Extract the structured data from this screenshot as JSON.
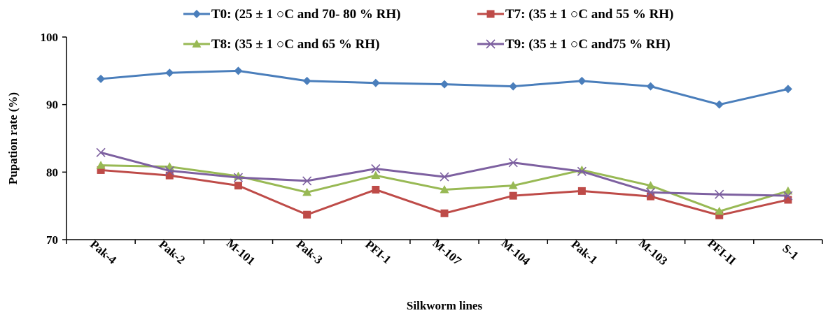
{
  "chart_data": {
    "type": "line",
    "xlabel": "Silkworm lines",
    "ylabel": "Pupation rate (%)",
    "ylim": [
      70,
      100
    ],
    "yticks": [
      70,
      80,
      90,
      100
    ],
    "categories": [
      "Pak-4",
      "Pak-2",
      "M-101",
      "Pak-3",
      "PFI-1",
      "M-107",
      "M-104",
      "Pak-1",
      "M-103",
      "PFI-II",
      "S-1"
    ],
    "grid": false,
    "legend_position": "top",
    "series": [
      {
        "name": "T0: (25 ± 1 ○C and 70- 80 % RH)",
        "color": "#4a7ebb",
        "marker": "diamond",
        "values": [
          93.8,
          94.7,
          95.0,
          93.5,
          93.2,
          93.0,
          92.7,
          93.5,
          92.7,
          90.0,
          92.3
        ]
      },
      {
        "name": "T7: (35 ± 1 ○C and 55 % RH)",
        "color": "#be4b48",
        "marker": "square",
        "values": [
          80.3,
          79.5,
          78.0,
          73.7,
          77.4,
          73.9,
          76.5,
          77.2,
          76.4,
          73.6,
          75.9
        ]
      },
      {
        "name": "T8: (35 ± 1 ○C and 65 % RH)",
        "color": "#98b954",
        "marker": "triangle",
        "values": [
          81.0,
          80.8,
          79.4,
          77.0,
          79.5,
          77.4,
          78.0,
          80.3,
          78.0,
          74.2,
          77.2
        ]
      },
      {
        "name": "T9: (35 ± 1 ○C and75 % RH)",
        "color": "#7d60a0",
        "marker": "x",
        "values": [
          82.9,
          80.2,
          79.2,
          78.7,
          80.5,
          79.3,
          81.4,
          80.1,
          77.0,
          76.7,
          76.5
        ]
      }
    ]
  }
}
